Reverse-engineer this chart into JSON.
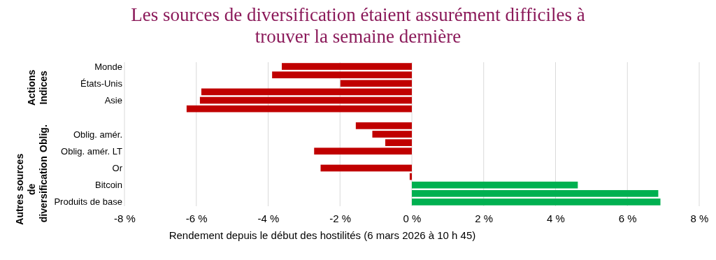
{
  "chart_data": {
    "type": "bar",
    "orientation": "horizontal",
    "title": "Les sources de diversification étaient assurément difficiles à\ntrouver la semaine dernière",
    "xlabel": "Rendement depuis le début des hostilités (6 mars 2026 à 10 h 45)",
    "categories": [
      "Monde",
      null,
      "États-Unis",
      null,
      "Asie",
      null,
      null,
      null,
      "Oblig. amér.",
      null,
      "Oblig. amér. LT",
      null,
      "Or",
      null,
      "Bitcoin",
      null,
      "Produits de base"
    ],
    "values": [
      -3.62,
      -3.89,
      -1.99,
      -5.86,
      -5.9,
      -6.27,
      null,
      -1.56,
      -1.1,
      -0.74,
      -2.72,
      null,
      -2.54,
      -0.06,
      4.62,
      6.86,
      6.92
    ],
    "colors": [
      "#c00000",
      "#c00000",
      "#c00000",
      "#c00000",
      "#c00000",
      "#c00000",
      null,
      "#c00000",
      "#c00000",
      "#c00000",
      "#c00000",
      null,
      "#c00000",
      "#c00000",
      "#00b050",
      "#00b050",
      "#00b050"
    ],
    "xlim": [
      -8,
      8
    ],
    "xticks": [
      {
        "value": -8,
        "label": "-8 %"
      },
      {
        "value": -6,
        "label": "-6 %"
      },
      {
        "value": -4,
        "label": "-4 %"
      },
      {
        "value": -2,
        "label": "-2 %"
      },
      {
        "value": 0,
        "label": "0 %"
      },
      {
        "value": 2,
        "label": "2 %"
      },
      {
        "value": 4,
        "label": "4 %"
      },
      {
        "value": 6,
        "label": "6 %"
      },
      {
        "value": 8,
        "label": "8 %"
      }
    ],
    "grid": "x",
    "annotations": [
      "Actions\nIndices",
      "Oblig.",
      "Autres sources\nde\ndiversification"
    ]
  }
}
